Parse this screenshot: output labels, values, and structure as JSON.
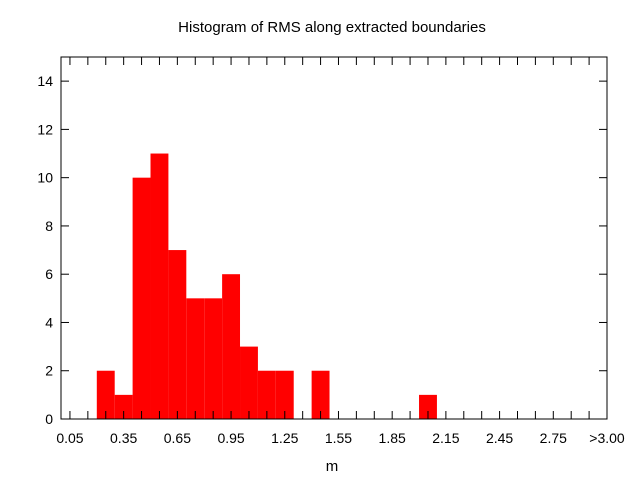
{
  "chart_data": {
    "type": "bar",
    "title": "Histogram of RMS along extracted boundaries",
    "xlabel": "m",
    "ylabel": "",
    "x_tick_labels": [
      "0.05",
      "0.35",
      "0.65",
      "0.95",
      "1.25",
      "1.55",
      "1.85",
      "2.15",
      "2.45",
      "2.75",
      ">3.00"
    ],
    "y_ticks": [
      0,
      2,
      4,
      6,
      8,
      10,
      12,
      14
    ],
    "xlim": [
      0.0,
      3.05
    ],
    "ylim": [
      0,
      15
    ],
    "bin_width": 0.1,
    "bins": [
      {
        "x": 0.25,
        "value": 2
      },
      {
        "x": 0.35,
        "value": 1
      },
      {
        "x": 0.45,
        "value": 10
      },
      {
        "x": 0.55,
        "value": 11
      },
      {
        "x": 0.65,
        "value": 7
      },
      {
        "x": 0.75,
        "value": 5
      },
      {
        "x": 0.85,
        "value": 5
      },
      {
        "x": 0.95,
        "value": 6
      },
      {
        "x": 1.05,
        "value": 3
      },
      {
        "x": 1.15,
        "value": 2
      },
      {
        "x": 1.25,
        "value": 2
      },
      {
        "x": 1.45,
        "value": 2
      },
      {
        "x": 2.05,
        "value": 1
      }
    ],
    "bar_color": "#ff0000",
    "grid": false
  }
}
